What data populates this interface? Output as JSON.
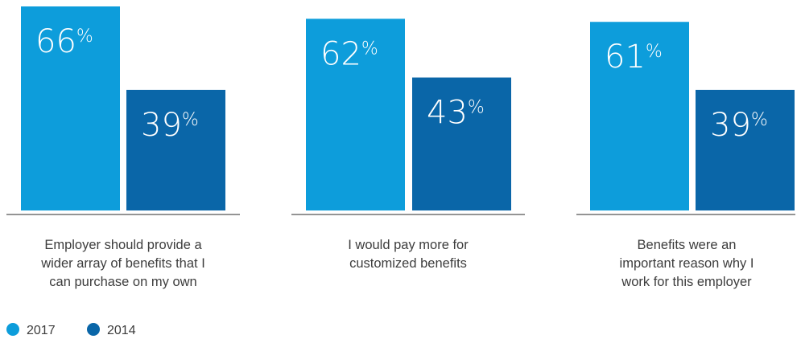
{
  "chart_data": {
    "type": "bar",
    "unit": "%",
    "ylim": [
      0,
      66
    ],
    "categories": [
      "Employer should provide a wider array of benefits that I can purchase on my own",
      "I would pay more for customized benefits",
      "Benefits were an important reason why I work for this employer"
    ],
    "category_lines": [
      [
        "Employer should provide a",
        "wider array of benefits that I",
        "can purchase on my own"
      ],
      [
        "I would pay more for",
        "customized benefits"
      ],
      [
        "Benefits were an",
        "important reason why I",
        "work for this employer"
      ]
    ],
    "series": [
      {
        "name": "2017",
        "color": "#0d9ddb",
        "values": [
          66,
          62,
          61
        ]
      },
      {
        "name": "2014",
        "color": "#0a66a8",
        "values": [
          39,
          43,
          39
        ]
      }
    ],
    "legend": {
      "placement": "bottom-left"
    },
    "grid": false
  },
  "colors": {
    "axis_line": "#555555",
    "text": "#3d3d3d",
    "bar_text": "#ffffff"
  }
}
